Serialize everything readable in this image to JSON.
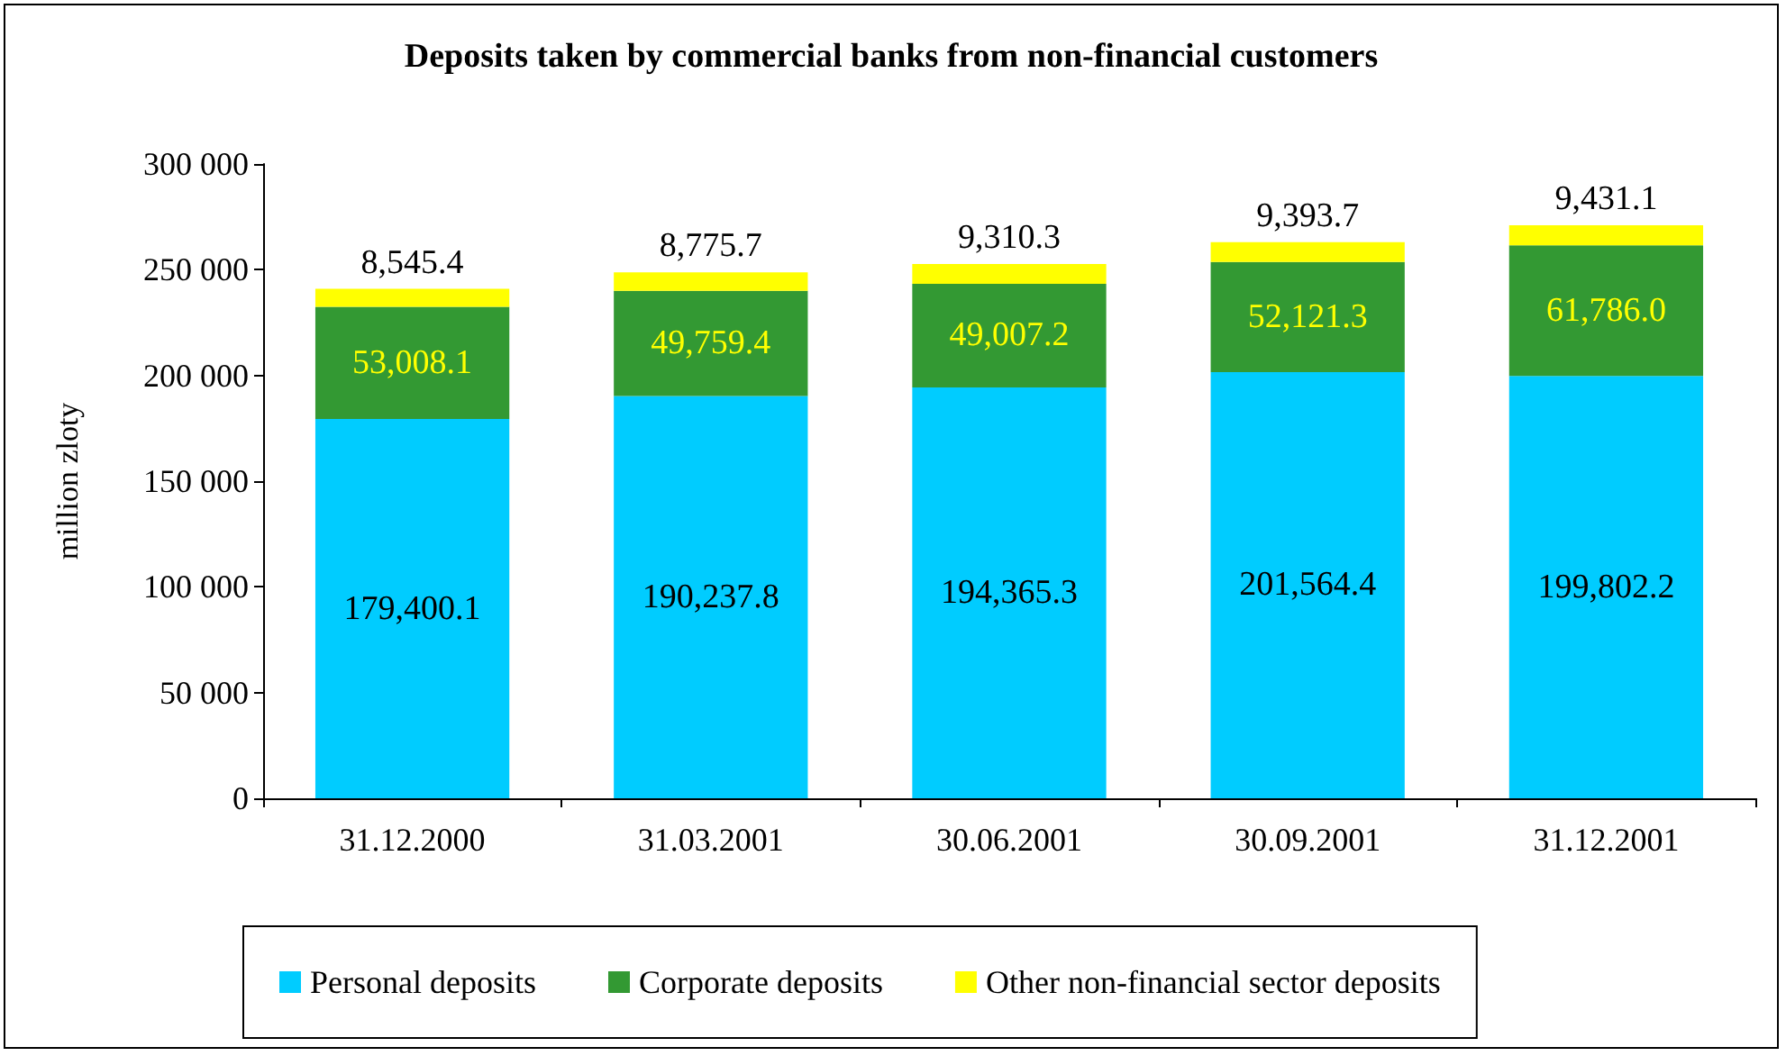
{
  "chart_data": {
    "type": "bar",
    "title": "Deposits taken by commercial banks from non-financial customers",
    "ylabel": "million zloty",
    "categories": [
      "31.12.2000",
      "31.03.2001",
      "30.06.2001",
      "30.09.2001",
      "31.12.2001"
    ],
    "stacked": true,
    "grid": false,
    "legend": "bottom",
    "ylim": [
      0,
      300000
    ],
    "yticks": [
      {
        "value": 0,
        "label": "0"
      },
      {
        "value": 50000,
        "label": "50 000"
      },
      {
        "value": 100000,
        "label": "100 000"
      },
      {
        "value": 150000,
        "label": "150 000"
      },
      {
        "value": 200000,
        "label": "200 000"
      },
      {
        "value": 250000,
        "label": "250 000"
      },
      {
        "value": 300000,
        "label": "300 000"
      }
    ],
    "series": [
      {
        "name": "Personal deposits",
        "color": "#00ccff",
        "values": [
          179400.1,
          190237.8,
          194365.3,
          201564.4,
          199802.2
        ],
        "value_labels": [
          "179,400.1",
          "190,237.8",
          "194,365.3",
          "201,564.4",
          "199,802.2"
        ]
      },
      {
        "name": "Corporate deposits",
        "color": "#339933",
        "values": [
          53008.1,
          49759.4,
          49007.2,
          52121.3,
          61786.0
        ],
        "value_labels": [
          "53,008.1",
          "49,759.4",
          "49,007.2",
          "52,121.3",
          "61,786.0"
        ]
      },
      {
        "name": "Other non-financial sector deposits",
        "color": "#ffff00",
        "values": [
          8545.4,
          8775.7,
          9310.3,
          9393.7,
          9431.1
        ],
        "value_labels": [
          "8,545.4",
          "8,775.7",
          "9,310.3",
          "9,393.7",
          "9,431.1"
        ]
      }
    ]
  }
}
